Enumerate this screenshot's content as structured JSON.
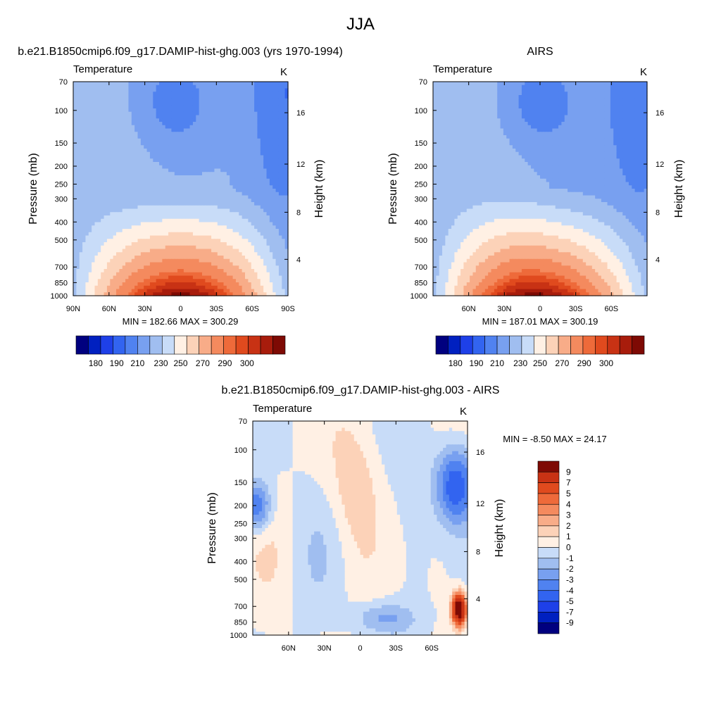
{
  "figure": {
    "title": "JJA"
  },
  "palettes": {
    "temperature": [
      "#00007f",
      "#0020c0",
      "#1e40e8",
      "#3264f0",
      "#5082f0",
      "#78a0f0",
      "#a0bef0",
      "#c8dcf8",
      "#fff0e4",
      "#fcd2b8",
      "#f8ac88",
      "#f48a5e",
      "#ee6a3a",
      "#e04a1e",
      "#c83214",
      "#a81c0c",
      "#7e0a04"
    ],
    "difference": [
      "#00007f",
      "#0020c0",
      "#1e40e8",
      "#3264f0",
      "#5082f0",
      "#78a0f0",
      "#a0bef0",
      "#c8dcf8",
      "#fff0e4",
      "#fcd2b8",
      "#f8ac88",
      "#f48a5e",
      "#ee6a3a",
      "#e04a1e",
      "#c83214",
      "#7e0a04"
    ]
  },
  "chart_data": [
    {
      "type": "heatmap",
      "panel": "model",
      "title": "b.e21.B1850cmip6.f09_g17.DAMIP-hist-ghg.003 (yrs 1970-1994)",
      "left_label": "Temperature",
      "units": "K",
      "ylabel": "Pressure (mb)",
      "y2label": "Height (km)",
      "x_ticks": [
        "90N",
        "60N",
        "30N",
        "0",
        "30S",
        "60S",
        "90S"
      ],
      "y_ticks": [
        "70",
        "100",
        "150",
        "200",
        "250",
        "300",
        "400",
        "500",
        "700",
        "850",
        "1000"
      ],
      "y2_ticks": [
        "4",
        "8",
        "12",
        "16"
      ],
      "stats": "MIN = 182.66  MAX = 300.29",
      "colorbar_labels": [
        "180",
        "190",
        "210",
        "230",
        "250",
        "270",
        "290",
        "300"
      ],
      "max_value": 300.29,
      "min_value": 182.66
    },
    {
      "type": "heatmap",
      "panel": "obs",
      "title": "AIRS",
      "left_label": "Temperature",
      "units": "K",
      "ylabel": "Pressure (mb)",
      "y2label": "Height (km)",
      "x_ticks": [
        "60N",
        "30N",
        "0",
        "30S",
        "60S"
      ],
      "y_ticks": [
        "70",
        "100",
        "150",
        "200",
        "250",
        "300",
        "400",
        "500",
        "700",
        "850",
        "1000"
      ],
      "y2_ticks": [
        "4",
        "8",
        "12",
        "16"
      ],
      "stats": "MIN = 187.01  MAX = 300.19",
      "colorbar_labels": [
        "180",
        "190",
        "210",
        "230",
        "250",
        "270",
        "290",
        "300"
      ],
      "max_value": 300.19,
      "min_value": 187.01
    },
    {
      "type": "heatmap",
      "panel": "difference",
      "title": "b.e21.B1850cmip6.f09_g17.DAMIP-hist-ghg.003 - AIRS",
      "left_label": "Temperature",
      "units": "K",
      "ylabel": "Pressure (mb)",
      "y2label": "Height (km)",
      "x_ticks": [
        "60N",
        "30N",
        "0",
        "30S",
        "60S"
      ],
      "y_ticks": [
        "70",
        "100",
        "150",
        "200",
        "250",
        "300",
        "400",
        "500",
        "700",
        "850",
        "1000"
      ],
      "y2_ticks": [
        "4",
        "8",
        "12",
        "16"
      ],
      "stats": "MIN =  -8.50  MAX =  24.17",
      "colorbar_labels": [
        "9",
        "7",
        "5",
        "4",
        "3",
        "2",
        "1",
        "0",
        "-1",
        "-2",
        "-3",
        "-4",
        "-5",
        "-7",
        "-9"
      ],
      "max_value": 24.17,
      "min_value": -8.5
    }
  ]
}
